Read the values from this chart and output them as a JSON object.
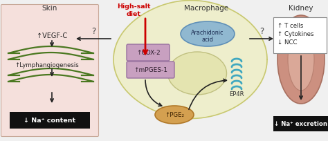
{
  "bg_color": "#f0f0f0",
  "skin_bg": "#f5e0dc",
  "skin_border": "#c8a898",
  "macrophage_body": "#eeeecc",
  "macrophage_border": "#c8c870",
  "arachidonic_fill": "#90b8d0",
  "arachidonic_border": "#6090b8",
  "cox2_fill": "#c8a0c0",
  "cox2_border": "#9870a0",
  "mpges_fill": "#c8a0c0",
  "mpges_border": "#9870a0",
  "pge2_fill": "#d4a050",
  "pge2_border": "#b07828",
  "kidney_fill": "#cc9080",
  "kidney_border": "#a87060",
  "kidney_inner": "#daa898",
  "black_box_color": "#111111",
  "white_text": "#ffffff",
  "red_color": "#cc0000",
  "dark_color": "#222222",
  "ep4r_color": "#40a8c0",
  "green_color": "#4a7820",
  "skin_title": "Skin",
  "macrophage_title": "Macrophage",
  "kidney_title": "Kidney",
  "high_salt_text": "High-salt\ndiet",
  "vegfc_text": "↑VEGF-C",
  "lymph_text": "↑Lymphangiogenesis",
  "na_skin_text": "↓ Na⁺ content",
  "arachidonic_line1": "Arachidonic",
  "arachidonic_line2": "acid",
  "cox2_text": "↑COX-2",
  "mpges_text": "↑mPGES-1",
  "pge2_text": "↑PGE₂",
  "ep4r_text": "EP4R",
  "tcells_text": "↑ T cells",
  "cytokines_text": "↑ Cytokines",
  "ncc_text": "↓ NCC",
  "na_kidney_text": "↓ Na⁺ excretion",
  "question_mark": "?"
}
